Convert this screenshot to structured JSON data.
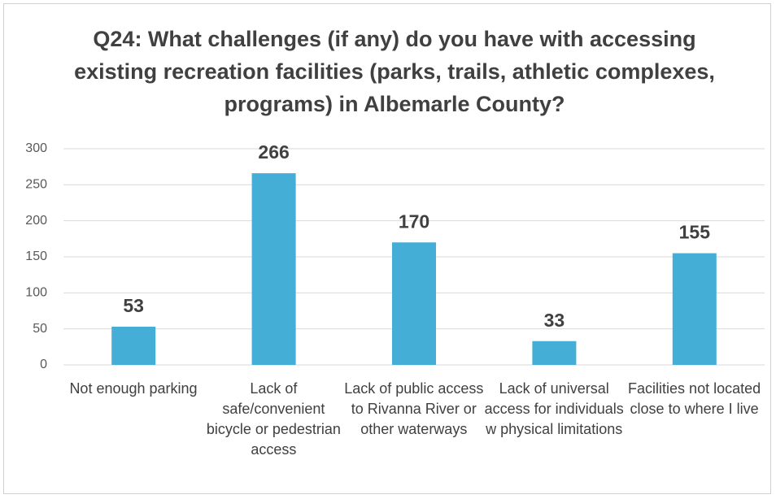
{
  "chart_data": {
    "type": "bar",
    "title": "Q24: What challenges (if any) do you have with accessing existing recreation facilities (parks, trails, athletic complexes, programs) in Albemarle County?",
    "categories": [
      "Not enough parking",
      "Lack of safe/convenient bicycle or pedestrian access",
      "Lack of public access to Rivanna River or other waterways",
      "Lack of universal access for individuals w physical limitations",
      "Facilities not located close to where I live"
    ],
    "values": [
      53,
      266,
      170,
      33,
      155
    ],
    "color": "#45aed6",
    "ylim": [
      0,
      300
    ],
    "yticks": [
      0,
      50,
      100,
      150,
      200,
      250,
      300
    ],
    "grid": true
  }
}
